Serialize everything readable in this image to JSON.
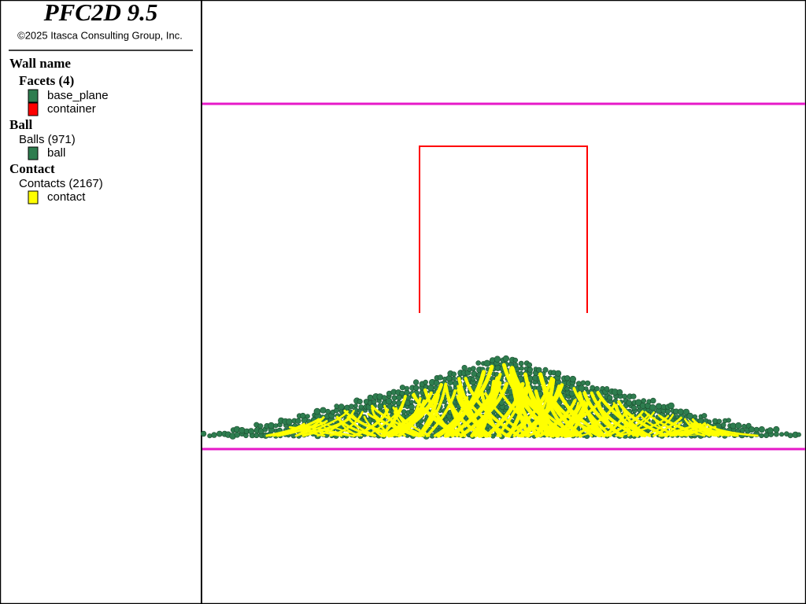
{
  "header": {
    "title": "PFC2D 9.5",
    "copyright": "©2025 Itasca Consulting Group, Inc."
  },
  "legend": {
    "wall": {
      "title": "Wall name",
      "group": "Facets (4)",
      "items": [
        {
          "label": "base_plane",
          "color": "#2e7d4f"
        },
        {
          "label": "container",
          "color": "#ff0000"
        }
      ]
    },
    "ball": {
      "title": "Ball",
      "group": "Balls (971)",
      "items": [
        {
          "label": "ball",
          "color": "#2e7d4f"
        }
      ]
    },
    "contact": {
      "title": "Contact",
      "group": "Contacts (2167)",
      "items": [
        {
          "label": "contact",
          "color": "#ffff00"
        }
      ]
    }
  }
}
